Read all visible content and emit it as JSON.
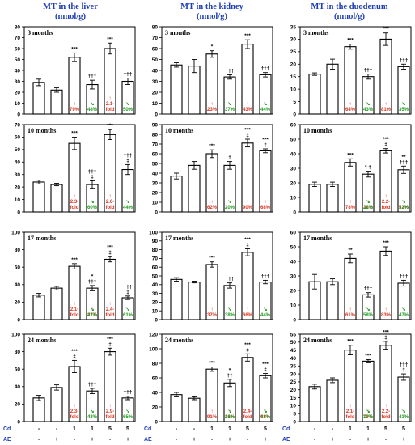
{
  "colors": {
    "header": "#1f3fb8",
    "increase": "#e0301c",
    "decrease": "#1f9a1f"
  },
  "headers": [
    {
      "title": "MT in the liver",
      "unit": "(nmol/g)"
    },
    {
      "title": "MT in the kidney",
      "unit": "(nmol/g)"
    },
    {
      "title": "MT in the duodenum",
      "unit": "(nmol/g)"
    }
  ],
  "groups": {
    "cd_label": "Cd",
    "ae_label": "AE",
    "cd": [
      "-",
      "-",
      "1",
      "1",
      "5",
      "5"
    ],
    "ae": [
      "-",
      "+",
      "-",
      "+",
      "-",
      "+"
    ]
  },
  "chart_data": [
    {
      "type": "bar",
      "title": "3 months",
      "ylim": [
        0,
        80
      ],
      "yticks": [
        0,
        10,
        20,
        30,
        40,
        50,
        60,
        70,
        80
      ],
      "values": [
        29,
        22,
        52,
        27,
        60,
        30
      ],
      "errors": [
        3,
        2,
        4,
        4,
        5,
        3
      ],
      "stars": [
        "",
        "",
        "***",
        "†††",
        "***",
        "†††"
      ],
      "red": [
        null,
        null,
        [
          "↑",
          "79%"
        ],
        null,
        [
          "↑",
          "2.1-",
          "fold"
        ],
        null
      ],
      "green": [
        null,
        null,
        null,
        [
          "↘",
          "48%"
        ],
        null,
        [
          "↘",
          "50%"
        ]
      ]
    },
    {
      "type": "bar",
      "title": "3 months",
      "ylim": [
        0,
        80
      ],
      "yticks": [
        0,
        10,
        20,
        30,
        40,
        50,
        60,
        70,
        80
      ],
      "values": [
        45,
        44,
        55,
        34,
        64,
        36
      ],
      "errors": [
        2,
        6,
        3,
        2,
        4,
        2
      ],
      "stars": [
        "",
        "",
        "*",
        "†††",
        "***",
        "†††"
      ],
      "red": [
        null,
        null,
        [
          "↑",
          "23%"
        ],
        null,
        [
          "↑",
          "43%"
        ],
        null
      ],
      "green": [
        null,
        null,
        null,
        [
          "↘",
          "37%"
        ],
        null,
        [
          "↘",
          "44%"
        ]
      ]
    },
    {
      "type": "bar",
      "title": "3 months",
      "ylim": [
        0,
        35
      ],
      "yticks": [
        0,
        5,
        10,
        15,
        20,
        25,
        30,
        35
      ],
      "values": [
        16,
        20,
        27,
        15,
        30,
        19
      ],
      "errors": [
        0.5,
        2,
        1,
        1,
        2.5,
        1
      ],
      "stars": [
        "",
        "",
        "***",
        "†††",
        "***",
        "†††"
      ],
      "red": [
        null,
        null,
        [
          "↑",
          "64%"
        ],
        null,
        [
          "↑",
          "81%"
        ],
        null
      ],
      "green": [
        null,
        null,
        null,
        [
          "↘",
          "43%"
        ],
        null,
        [
          "↘",
          "35%"
        ]
      ]
    },
    {
      "type": "bar",
      "title": "10 months",
      "ylim": [
        0,
        70
      ],
      "yticks": [
        0,
        10,
        20,
        30,
        40,
        50,
        60,
        70
      ],
      "values": [
        24,
        22,
        55,
        22,
        62,
        34
      ],
      "errors": [
        1.5,
        1,
        5,
        3,
        4,
        4
      ],
      "stars": [
        "",
        "",
        "***",
        "†††\n‡",
        "***",
        "†††\n‡"
      ],
      "red": [
        null,
        null,
        [
          "↑",
          "2.3-",
          "fold"
        ],
        null,
        [
          "↑",
          "2.6-",
          "fold"
        ],
        null
      ],
      "green": [
        null,
        null,
        null,
        [
          "↘",
          "60%"
        ],
        null,
        [
          "↘",
          "44%"
        ]
      ]
    },
    {
      "type": "bar",
      "title": "10 months",
      "ylim": [
        0,
        90
      ],
      "yticks": [
        0,
        10,
        20,
        30,
        40,
        50,
        60,
        70,
        80,
        90
      ],
      "values": [
        37,
        48,
        60,
        48,
        71,
        63
      ],
      "errors": [
        3,
        4,
        4,
        4,
        4,
        2
      ],
      "stars": [
        "",
        "",
        "***",
        "†",
        "***\n‡",
        "***\n‡"
      ],
      "red": [
        null,
        null,
        [
          "↑",
          "62%"
        ],
        null,
        [
          "↑",
          "90%"
        ],
        [
          "↑",
          "68%"
        ]
      ],
      "green": [
        null,
        null,
        null,
        [
          "↘",
          "20%"
        ],
        null,
        null
      ]
    },
    {
      "type": "bar",
      "title": "10 months",
      "ylim": [
        0,
        60
      ],
      "yticks": [
        0,
        10,
        20,
        30,
        40,
        50,
        60
      ],
      "values": [
        19,
        19,
        34,
        26,
        42,
        29
      ],
      "errors": [
        1.5,
        1.5,
        2.5,
        2,
        1.5,
        2.5
      ],
      "stars": [
        "",
        "",
        "***",
        "* †",
        "***\n‡",
        "**\n†††"
      ],
      "red": [
        null,
        null,
        [
          "↑",
          "78%"
        ],
        [
          "↑",
          "38%"
        ],
        [
          "↑",
          "2.2-",
          "fold"
        ],
        [
          "↑",
          "52%"
        ]
      ],
      "green": [
        null,
        null,
        null,
        [
          "↘",
          "22%"
        ],
        null,
        [
          "↘",
          "31%"
        ]
      ]
    },
    {
      "type": "bar",
      "title": "17 months",
      "ylim": [
        0,
        100
      ],
      "yticks": [
        0,
        20,
        40,
        60,
        80,
        100
      ],
      "values": [
        28,
        36,
        61,
        36,
        69,
        25
      ],
      "errors": [
        2,
        2,
        3,
        3,
        3,
        2
      ],
      "stars": [
        "",
        "",
        "***",
        "*\n†††",
        "***\n‡",
        "†††\n‡"
      ],
      "red": [
        null,
        null,
        [
          "↑",
          "2.1-",
          "fold"
        ],
        [
          "↑",
          "27%"
        ],
        [
          "↑",
          "2.4-",
          "fold"
        ],
        null
      ],
      "green": [
        null,
        null,
        null,
        [
          "↘",
          "41%"
        ],
        null,
        [
          "↘",
          "61%"
        ]
      ]
    },
    {
      "type": "bar",
      "title": "17 months",
      "ylim": [
        0,
        100
      ],
      "yticks": [
        0,
        10,
        20,
        30,
        40,
        50,
        60,
        70,
        80,
        90,
        100
      ],
      "values": [
        46,
        43,
        63,
        39,
        77,
        43
      ],
      "errors": [
        2,
        1,
        3,
        3,
        4,
        2
      ],
      "stars": [
        "",
        "",
        "***",
        "†††",
        "***\n‡",
        "†††"
      ],
      "red": [
        null,
        null,
        [
          "↑",
          "37%"
        ],
        null,
        [
          "↑",
          "66%"
        ],
        null
      ],
      "green": [
        null,
        null,
        null,
        [
          "↘",
          "38%"
        ],
        null,
        [
          "↘",
          "44%"
        ]
      ]
    },
    {
      "type": "bar",
      "title": "17 months",
      "ylim": [
        0,
        60
      ],
      "yticks": [
        0,
        10,
        20,
        30,
        40,
        50,
        60
      ],
      "values": [
        26,
        26,
        42,
        17,
        47,
        25
      ],
      "errors": [
        5,
        2,
        3,
        1.5,
        3,
        2
      ],
      "stars": [
        "",
        "",
        "**",
        "†††",
        "***",
        "†††"
      ],
      "red": [
        null,
        null,
        [
          "↑",
          "61%"
        ],
        null,
        [
          "↑",
          "83%"
        ],
        null
      ],
      "green": [
        null,
        null,
        null,
        [
          "↘",
          "58%"
        ],
        null,
        [
          "↘",
          "47%"
        ]
      ]
    },
    {
      "type": "bar",
      "title": "24 months",
      "ylim": [
        0,
        100
      ],
      "yticks": [
        0,
        20,
        40,
        60,
        80,
        100
      ],
      "values": [
        27,
        39,
        63,
        35,
        80,
        27
      ],
      "errors": [
        3,
        3,
        7,
        3,
        4,
        2
      ],
      "stars": [
        "",
        "",
        "***\n‡",
        "†††",
        "***\n‡",
        "†††"
      ],
      "red": [
        null,
        null,
        [
          "↑",
          "2.3-",
          "fold"
        ],
        null,
        [
          "↑",
          "2.9-",
          "fold"
        ],
        null
      ],
      "green": [
        null,
        null,
        null,
        [
          "↘",
          "43%"
        ],
        null,
        [
          "↘",
          "65%"
        ]
      ]
    },
    {
      "type": "bar",
      "title": "24 months",
      "ylim": [
        0,
        120
      ],
      "yticks": [
        0,
        20,
        40,
        60,
        80,
        100,
        120
      ],
      "values": [
        37,
        32,
        72,
        53,
        88,
        63
      ],
      "errors": [
        3,
        2,
        3,
        5,
        5,
        3
      ],
      "stars": [
        "",
        "",
        "***",
        "*\n††",
        "***\n‡",
        "***\n‡"
      ],
      "red": [
        null,
        null,
        [
          "↑",
          "91%"
        ],
        [
          "↑",
          "41%"
        ],
        [
          "↑",
          "2.4-",
          "fold"
        ],
        [
          "↑",
          "68%"
        ]
      ],
      "green": [
        null,
        null,
        null,
        [
          "↘",
          "26%"
        ],
        null,
        [
          "↘",
          "44%"
        ]
      ]
    },
    {
      "type": "bar",
      "title": "24 months",
      "ylim": [
        0,
        55
      ],
      "yticks": [
        0,
        5,
        10,
        15,
        20,
        25,
        30,
        35,
        40,
        45,
        50,
        55
      ],
      "values": [
        22,
        26,
        45,
        38,
        48,
        28
      ],
      "errors": [
        1.5,
        1.5,
        3,
        1,
        2.5,
        2
      ],
      "stars": [
        "",
        "",
        "***",
        "***",
        "***\n‡",
        "†††\n‡"
      ],
      "red": [
        null,
        null,
        [
          "↑",
          "2.1-",
          "fold"
        ],
        [
          "↑",
          "70%"
        ],
        [
          "↑",
          "2.2-",
          "fold"
        ],
        null
      ],
      "green": [
        null,
        null,
        null,
        [
          "↘",
          "17%"
        ],
        null,
        [
          "↘",
          "41%"
        ]
      ]
    }
  ]
}
